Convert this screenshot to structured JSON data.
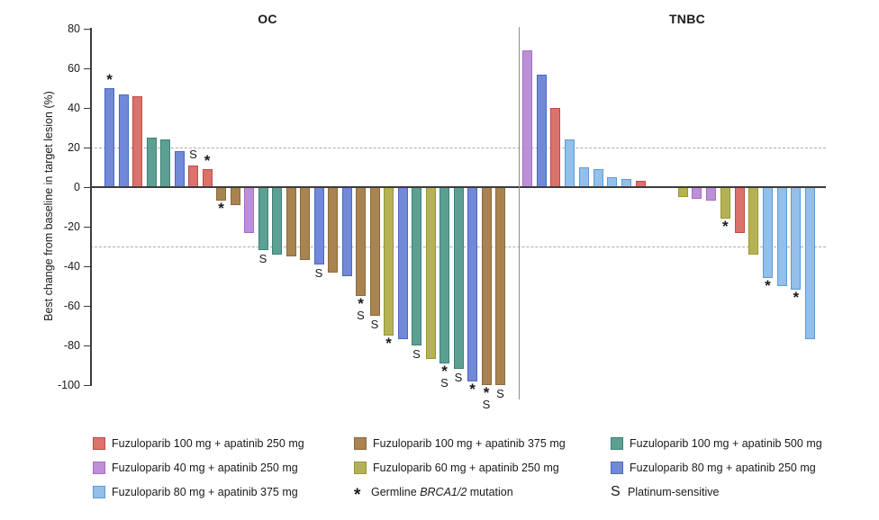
{
  "chart_data": {
    "type": "bar",
    "subtype": "waterfall",
    "ylabel": "Best change from baseline in target lesion (%)",
    "ylim": [
      -100,
      80
    ],
    "yticks": [
      80,
      60,
      40,
      20,
      0,
      -20,
      -40,
      -60,
      -80,
      -100
    ],
    "reference_lines": [
      20,
      -30
    ],
    "grid": "off",
    "marker_meanings": {
      "*": "Germline BRCA1/2 mutation",
      "S": "Platinum-sensitive"
    },
    "groups": {
      "f100a250": {
        "fill": "#D9736C",
        "border": "#BE4B45",
        "label": "Fuzuloparib 100 mg + apatinib 250 mg"
      },
      "f40a250": {
        "fill": "#BC90D6",
        "border": "#A66BC9",
        "label": "Fuzuloparib 40 mg + apatinib 250 mg"
      },
      "f80a375": {
        "fill": "#93BFE9",
        "border": "#5B9BD5",
        "label": "Fuzuloparib 80 mg + apatinib 375 mg"
      },
      "f100a375": {
        "fill": "#A98350",
        "border": "#8A6A3D",
        "label": "Fuzuloparib 100 mg + apatinib 375 mg"
      },
      "f60a250": {
        "fill": "#B5B256",
        "border": "#97972F",
        "label": "Fuzuloparib 60 mg + apatinib 250 mg"
      },
      "f100a500": {
        "fill": "#5CA094",
        "border": "#3D8276",
        "label": "Fuzuloparib 100 mg + apatinib 500 mg"
      },
      "f80a250": {
        "fill": "#7289D8",
        "border": "#4A67C5",
        "label": "Fuzuloparib 80 mg + apatinib 250 mg"
      }
    },
    "panels": [
      {
        "title": "OC",
        "bars": [
          {
            "value": 50,
            "group": "f80a250",
            "marker": "*"
          },
          {
            "value": 47,
            "group": "f80a250",
            "marker": ""
          },
          {
            "value": 46,
            "group": "f100a250",
            "marker": ""
          },
          {
            "value": 25,
            "group": "f100a500",
            "marker": ""
          },
          {
            "value": 24,
            "group": "f100a500",
            "marker": ""
          },
          {
            "value": 18,
            "group": "f80a250",
            "marker": ""
          },
          {
            "value": 11,
            "group": "f100a250",
            "marker": "S"
          },
          {
            "value": 9,
            "group": "f100a250",
            "marker": "*"
          },
          {
            "value": -7,
            "group": "f100a375",
            "marker": "*"
          },
          {
            "value": -9,
            "group": "f100a375",
            "marker": ""
          },
          {
            "value": -23,
            "group": "f40a250",
            "marker": ""
          },
          {
            "value": -32,
            "group": "f100a500",
            "marker": "S"
          },
          {
            "value": -34,
            "group": "f100a500",
            "marker": ""
          },
          {
            "value": -35,
            "group": "f100a375",
            "marker": ""
          },
          {
            "value": -37,
            "group": "f100a375",
            "marker": ""
          },
          {
            "value": -39,
            "group": "f80a250",
            "marker": "S"
          },
          {
            "value": -43,
            "group": "f100a375",
            "marker": ""
          },
          {
            "value": -45,
            "group": "f80a250",
            "marker": ""
          },
          {
            "value": -55,
            "group": "f100a375",
            "marker": "*S"
          },
          {
            "value": -65,
            "group": "f100a375",
            "marker": "S"
          },
          {
            "value": -75,
            "group": "f60a250",
            "marker": "*"
          },
          {
            "value": -77,
            "group": "f80a250",
            "marker": ""
          },
          {
            "value": -80,
            "group": "f100a500",
            "marker": "S"
          },
          {
            "value": -87,
            "group": "f60a250",
            "marker": ""
          },
          {
            "value": -89,
            "group": "f100a500",
            "marker": "*S"
          },
          {
            "value": -92,
            "group": "f100a500",
            "marker": "S"
          },
          {
            "value": -98,
            "group": "f80a250",
            "marker": "*"
          },
          {
            "value": -100,
            "group": "f100a375",
            "marker": "*S"
          },
          {
            "value": -100,
            "group": "f100a375",
            "marker": "S"
          }
        ]
      },
      {
        "title": "TNBC",
        "bars": [
          {
            "value": 69,
            "group": "f40a250",
            "marker": ""
          },
          {
            "value": 57,
            "group": "f80a250",
            "marker": ""
          },
          {
            "value": 40,
            "group": "f100a250",
            "marker": ""
          },
          {
            "value": 24,
            "group": "f80a375",
            "marker": ""
          },
          {
            "value": 10,
            "group": "f80a375",
            "marker": ""
          },
          {
            "value": 9,
            "group": "f80a375",
            "marker": ""
          },
          {
            "value": 5,
            "group": "f80a375",
            "marker": ""
          },
          {
            "value": 4,
            "group": "f80a375",
            "marker": ""
          },
          {
            "value": 3,
            "group": "f100a250",
            "marker": ""
          },
          {
            "value": 0,
            "group": "",
            "marker": ""
          },
          {
            "value": 0,
            "group": "",
            "marker": ""
          },
          {
            "value": -5,
            "group": "f60a250",
            "marker": ""
          },
          {
            "value": -6,
            "group": "f40a250",
            "marker": ""
          },
          {
            "value": -7,
            "group": "f40a250",
            "marker": ""
          },
          {
            "value": -16,
            "group": "f60a250",
            "marker": "*"
          },
          {
            "value": -23,
            "group": "f100a250",
            "marker": ""
          },
          {
            "value": -34,
            "group": "f60a250",
            "marker": ""
          },
          {
            "value": -46,
            "group": "f80a375",
            "marker": "*"
          },
          {
            "value": -50,
            "group": "f80a375",
            "marker": ""
          },
          {
            "value": -52,
            "group": "f80a375",
            "marker": "*"
          },
          {
            "value": -77,
            "group": "f80a375",
            "marker": ""
          }
        ]
      }
    ],
    "legend": {
      "columns": [
        [
          {
            "swatch": "f100a250",
            "label": "Fuzuloparib 100 mg + apatinib 250 mg"
          },
          {
            "swatch": "f40a250",
            "label": "Fuzuloparib 40 mg + apatinib 250 mg"
          },
          {
            "swatch": "f80a375",
            "label": "Fuzuloparib 80 mg + apatinib 375 mg"
          }
        ],
        [
          {
            "swatch": "f100a375",
            "label": "Fuzuloparib 100 mg + apatinib 375 mg"
          },
          {
            "swatch": "f60a250",
            "label": "Fuzuloparib 60 mg + apatinib 250 mg"
          },
          {
            "symbol": "*",
            "label_parts": [
              "Germline ",
              "BRCA1/2",
              " mutation"
            ]
          }
        ],
        [
          {
            "swatch": "f100a500",
            "label": "Fuzuloparib 100 mg + apatinib 500 mg"
          },
          {
            "swatch": "f80a250",
            "label": "Fuzuloparib 80 mg + apatinib 250 mg"
          },
          {
            "symbol": "S",
            "label": "Platinum-sensitive"
          }
        ]
      ]
    }
  }
}
